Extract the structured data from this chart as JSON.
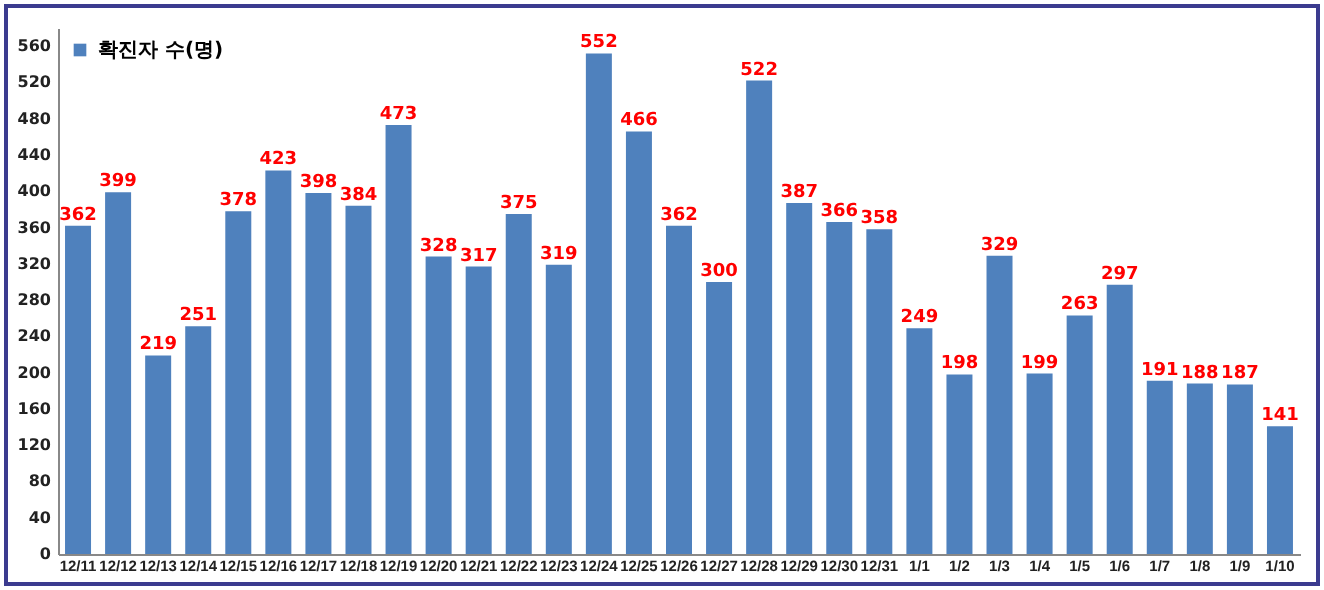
{
  "chart_data": {
    "type": "bar",
    "categories": [
      "12/11",
      "12/12",
      "12/13",
      "12/14",
      "12/15",
      "12/16",
      "12/17",
      "12/18",
      "12/19",
      "12/20",
      "12/21",
      "12/22",
      "12/23",
      "12/24",
      "12/25",
      "12/26",
      "12/27",
      "12/28",
      "12/29",
      "12/30",
      "12/31",
      "1/1",
      "1/2",
      "1/3",
      "1/4",
      "1/5",
      "1/6",
      "1/7",
      "1/8",
      "1/9",
      "1/10"
    ],
    "series": [
      {
        "name": "확진자 수(명)",
        "color": "#4f81bd",
        "values": [
          362,
          399,
          219,
          251,
          378,
          423,
          398,
          384,
          473,
          328,
          317,
          375,
          319,
          552,
          466,
          362,
          300,
          522,
          387,
          366,
          358,
          249,
          198,
          329,
          199,
          263,
          297,
          191,
          188,
          187,
          141
        ]
      }
    ],
    "ylim": [
      0,
      580
    ],
    "yticks": [
      0,
      40,
      80,
      120,
      160,
      200,
      240,
      280,
      320,
      360,
      400,
      440,
      480,
      520,
      560
    ],
    "data_labels": true,
    "legend": "top left",
    "grid": false
  }
}
